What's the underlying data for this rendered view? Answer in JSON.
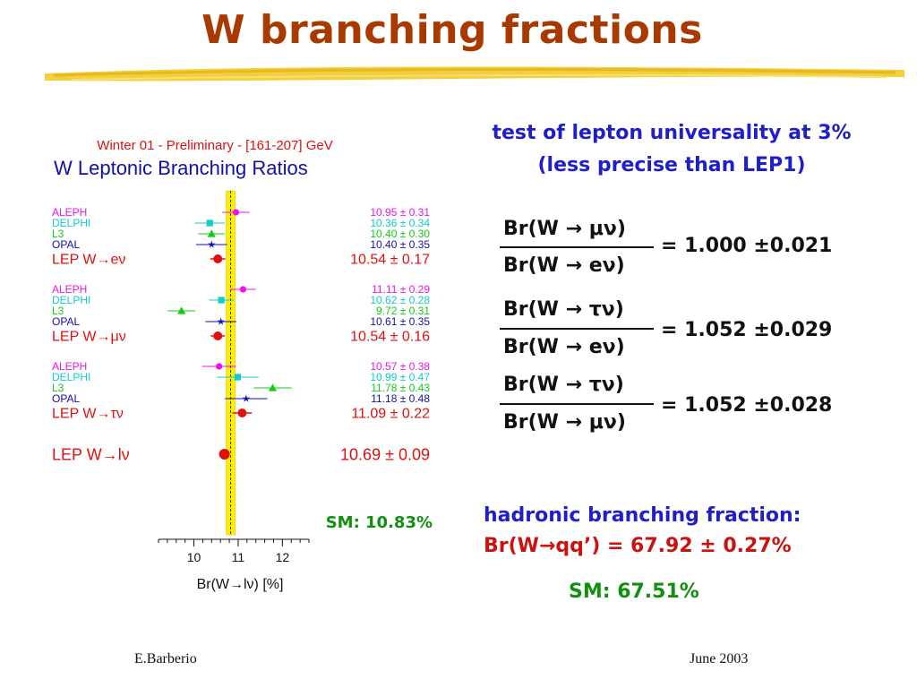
{
  "slide": {
    "title": "W branching fractions",
    "footer_author": "E.Barberio",
    "footer_date": "June 2003"
  },
  "text_right": {
    "universality_line1": "test of lepton universality at 3%",
    "universality_line2": "(less precise than LEP1)",
    "ratios": [
      {
        "num": "Br(W → μν)",
        "den": "Br(W → eν)",
        "value": "= 1.000 ±0.021"
      },
      {
        "num": "Br(W → τν)",
        "den": "Br(W → eν)",
        "value": "= 1.052 ±0.029"
      },
      {
        "num": "Br(W → τν)",
        "den": "Br(W → μν)",
        "value": "= 1.052 ±0.028"
      }
    ],
    "hadronic_label": "hadronic branching fraction:",
    "hadronic_value": "Br(W→qq’) = 67.92 ± 0.27%",
    "hadronic_sm": "SM: 67.51%"
  },
  "colors": {
    "title": "#a83a00",
    "aleph": "#ee11ee",
    "delphi": "#11cccc",
    "l3": "#11cc11",
    "opal": "#1111aa",
    "lep": "#e01010",
    "sm_band": "#ffee00",
    "text_blue": "#1f1fc8",
    "text_green": "#109010"
  },
  "chart_data": {
    "type": "scatter",
    "subtitle": "Winter 01 - Preliminary - [161-207] GeV",
    "title": "W Leptonic Branching Ratios",
    "xlabel": "Br(W→lν) [%]",
    "xlim": [
      9.2,
      12.6
    ],
    "xticks": [
      10,
      11,
      12
    ],
    "sm_value": 10.83,
    "sm_label": "SM: 10.83%",
    "groups": [
      {
        "name": "W→eν",
        "rows": [
          {
            "label": "ALEPH",
            "value": 10.95,
            "error": 0.31,
            "color_key": "aleph",
            "marker": "circle"
          },
          {
            "label": "DELPHI",
            "value": 10.36,
            "error": 0.34,
            "color_key": "delphi",
            "marker": "square"
          },
          {
            "label": "L3",
            "value": 10.4,
            "error": 0.3,
            "color_key": "l3",
            "marker": "triangle"
          },
          {
            "label": "OPAL",
            "value": 10.4,
            "error": 0.35,
            "color_key": "opal",
            "marker": "star"
          },
          {
            "label": "LEP W→eν",
            "value": 10.54,
            "error": 0.17,
            "color_key": "lep",
            "marker": "circle",
            "combined": true
          }
        ]
      },
      {
        "name": "W→μν",
        "rows": [
          {
            "label": "ALEPH",
            "value": 11.11,
            "error": 0.29,
            "color_key": "aleph",
            "marker": "circle"
          },
          {
            "label": "DELPHI",
            "value": 10.62,
            "error": 0.28,
            "color_key": "delphi",
            "marker": "square"
          },
          {
            "label": "L3",
            "value": 9.72,
            "error": 0.31,
            "color_key": "l3",
            "marker": "triangle"
          },
          {
            "label": "OPAL",
            "value": 10.61,
            "error": 0.35,
            "color_key": "opal",
            "marker": "star"
          },
          {
            "label": "LEP W→μν",
            "value": 10.54,
            "error": 0.16,
            "color_key": "lep",
            "marker": "circle",
            "combined": true
          }
        ]
      },
      {
        "name": "W→τν",
        "rows": [
          {
            "label": "ALEPH",
            "value": 10.57,
            "error": 0.38,
            "color_key": "aleph",
            "marker": "circle"
          },
          {
            "label": "DELPHI",
            "value": 10.99,
            "error": 0.47,
            "color_key": "delphi",
            "marker": "square"
          },
          {
            "label": "L3",
            "value": 11.78,
            "error": 0.43,
            "color_key": "l3",
            "marker": "triangle"
          },
          {
            "label": "OPAL",
            "value": 11.18,
            "error": 0.48,
            "color_key": "opal",
            "marker": "star"
          },
          {
            "label": "LEP W→τν",
            "value": 11.09,
            "error": 0.22,
            "color_key": "lep",
            "marker": "circle",
            "combined": true
          }
        ]
      },
      {
        "name": "W→lν",
        "rows": [
          {
            "label": "LEP W→lν",
            "value": 10.69,
            "error": 0.09,
            "color_key": "lep",
            "marker": "circle",
            "combined": true,
            "big": true
          }
        ]
      }
    ]
  }
}
